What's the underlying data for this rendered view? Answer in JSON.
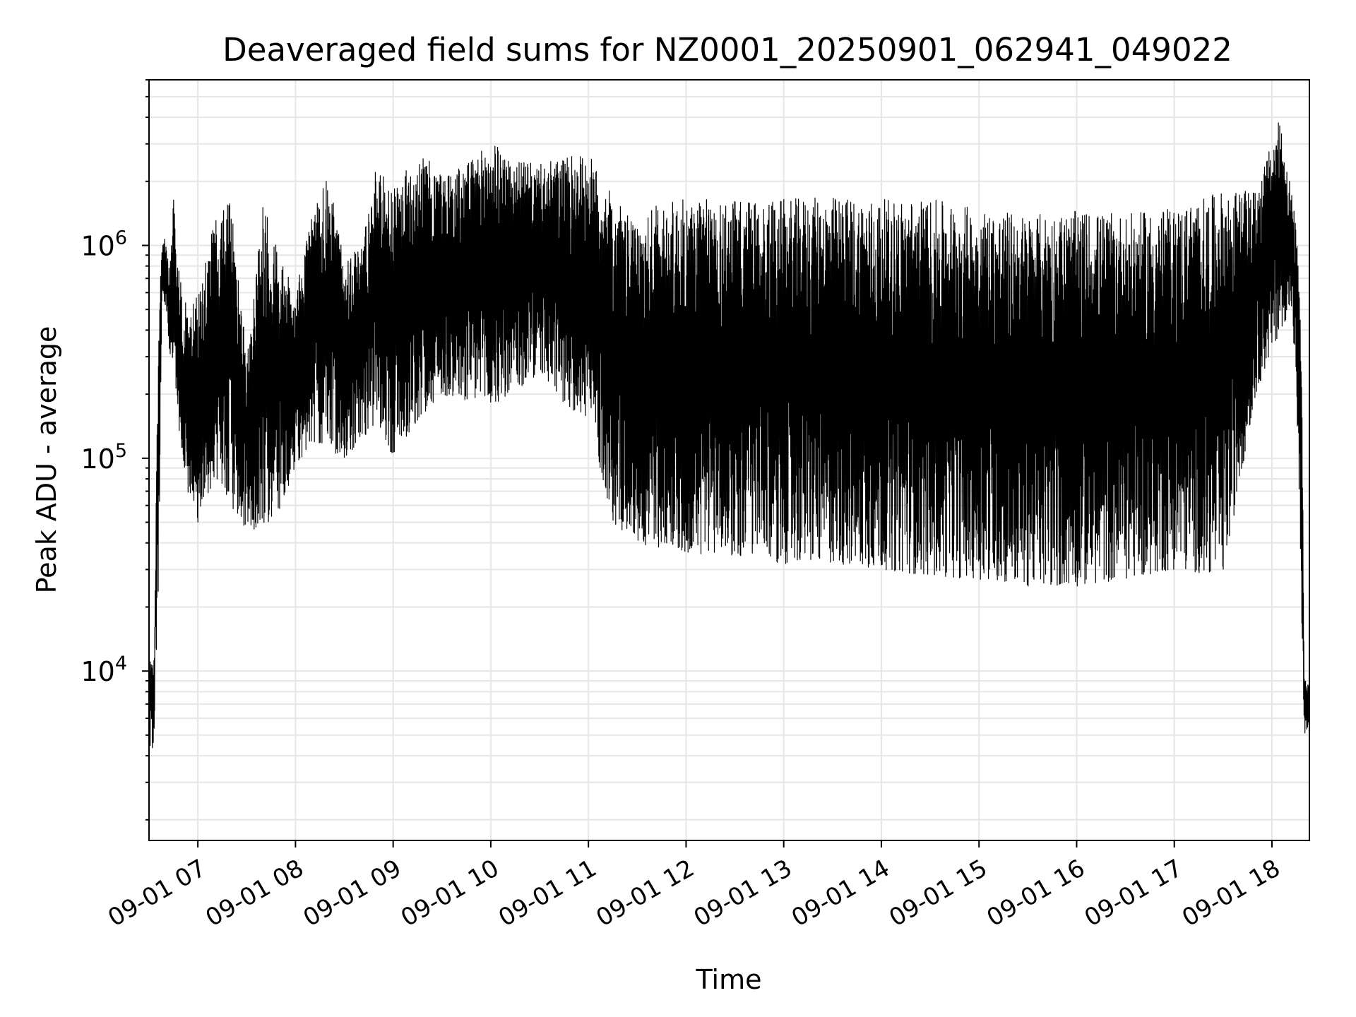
{
  "chart_data": {
    "type": "line",
    "title": "Deaveraged field sums for NZ0001_20250901_062941_049022",
    "xlabel": "Time",
    "ylabel": "Peak ADU - average",
    "y_scale": "log",
    "ylim": [
      1600,
      6000000
    ],
    "xlim": [
      "2025-09-01 06:30",
      "2025-09-01 18:23"
    ],
    "x_ticks": [
      "09-01 07",
      "09-01 08",
      "09-01 09",
      "09-01 10",
      "09-01 11",
      "09-01 12",
      "09-01 13",
      "09-01 14",
      "09-01 15",
      "09-01 16",
      "09-01 17",
      "09-01 18"
    ],
    "y_ticks": [
      {
        "value": 10000,
        "base": "10",
        "exp": "4"
      },
      {
        "value": 100000,
        "base": "10",
        "exp": "5"
      },
      {
        "value": 1000000,
        "base": "10",
        "exp": "6"
      }
    ],
    "grid": true,
    "line_color": "#000000",
    "grid_color": "#e6e6e6",
    "series": [
      {
        "x": [
          "2025-09-01 06:30",
          "2025-09-01 06:33",
          "2025-09-01 06:36",
          "2025-09-01 06:38",
          "2025-09-01 06:40",
          "2025-09-01 06:43",
          "2025-09-01 06:45",
          "2025-09-01 06:50",
          "2025-09-01 06:55",
          "2025-09-01 07:00",
          "2025-09-01 07:10",
          "2025-09-01 07:20",
          "2025-09-01 07:30",
          "2025-09-01 07:40",
          "2025-09-01 07:50",
          "2025-09-01 08:00",
          "2025-09-01 08:10",
          "2025-09-01 08:20",
          "2025-09-01 08:30",
          "2025-09-01 08:40",
          "2025-09-01 08:50",
          "2025-09-01 09:00",
          "2025-09-01 09:15",
          "2025-09-01 09:30",
          "2025-09-01 09:45",
          "2025-09-01 10:00",
          "2025-09-01 10:15",
          "2025-09-01 10:30",
          "2025-09-01 10:45",
          "2025-09-01 11:00",
          "2025-09-01 11:15",
          "2025-09-01 11:30",
          "2025-09-01 11:42",
          "2025-09-01 12:00",
          "2025-09-01 12:30",
          "2025-09-01 13:00",
          "2025-09-01 13:30",
          "2025-09-01 14:00",
          "2025-09-01 14:30",
          "2025-09-01 15:00",
          "2025-09-01 15:30",
          "2025-09-01 16:00",
          "2025-09-01 16:30",
          "2025-09-01 17:00",
          "2025-09-01 17:30",
          "2025-09-01 17:50",
          "2025-09-01 18:05",
          "2025-09-01 18:12",
          "2025-09-01 18:15",
          "2025-09-01 18:18",
          "2025-09-01 18:20",
          "2025-09-01 18:23"
        ],
        "upper": [
          12000,
          11000,
          500000,
          1000000,
          1100000,
          800000,
          1700000,
          600000,
          500000,
          600000,
          1300000,
          1700000,
          300000,
          1600000,
          900000,
          600000,
          1400000,
          2100000,
          900000,
          1000000,
          2400000,
          1800000,
          2800000,
          2200000,
          2400000,
          3100000,
          2500000,
          2400000,
          2600000,
          2700000,
          1700000,
          1200000,
          1600000,
          1650000,
          1650000,
          1650000,
          1700000,
          1650000,
          1650000,
          1500000,
          1400000,
          1450000,
          1400000,
          1500000,
          1800000,
          1800000,
          4000000,
          1800000,
          1200000,
          400000,
          9000,
          9000
        ],
        "lower": [
          4000,
          4500,
          30000,
          600000,
          500000,
          300000,
          250000,
          100000,
          60000,
          50000,
          80000,
          60000,
          45000,
          48000,
          55000,
          90000,
          120000,
          110000,
          100000,
          120000,
          150000,
          100000,
          150000,
          200000,
          180000,
          170000,
          200000,
          250000,
          180000,
          150000,
          50000,
          40000,
          38000,
          35000,
          35000,
          32000,
          32000,
          30000,
          28000,
          27000,
          25000,
          25000,
          27000,
          30000,
          28000,
          200000,
          400000,
          500000,
          200000,
          20000,
          4800,
          5500
        ]
      }
    ]
  }
}
